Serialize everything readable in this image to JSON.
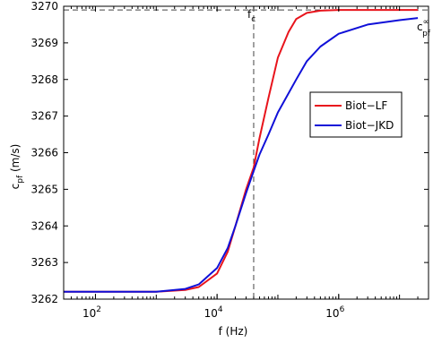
{
  "chart_data": {
    "type": "line",
    "xscale": "log",
    "xlim": [
      30,
      30000000
    ],
    "ylim": [
      3262,
      3270
    ],
    "xlabel": "f (Hz)",
    "ylabel_main": "c",
    "ylabel_sub": "pf",
    "ylabel_unit": " (m/s)",
    "x_ticks": [
      {
        "value": 100,
        "base": "10",
        "exp": "2"
      },
      {
        "value": 10000,
        "base": "10",
        "exp": "4"
      },
      {
        "value": 1000000,
        "base": "10",
        "exp": "6"
      }
    ],
    "y_ticks": [
      3262,
      3263,
      3264,
      3265,
      3266,
      3267,
      3268,
      3269,
      3270
    ],
    "annotations": {
      "fc_main": "f",
      "fc_sub": "c",
      "fc_value": 40000,
      "cinf_main": "c",
      "cinf_sup": "∞",
      "cinf_sub": "pf",
      "cinf_value": 3269.9
    },
    "legend": {
      "placement": "right-center"
    },
    "series": [
      {
        "name": "Biot−LF",
        "color": "#e8141c",
        "points": [
          [
            30,
            3262.2
          ],
          [
            1000,
            3262.2
          ],
          [
            3000,
            3262.25
          ],
          [
            5000,
            3262.33
          ],
          [
            10000,
            3262.7
          ],
          [
            15000,
            3263.3
          ],
          [
            20000,
            3264.0
          ],
          [
            30000,
            3265.0
          ],
          [
            40000,
            3265.6
          ],
          [
            50000,
            3266.4
          ],
          [
            70000,
            3267.5
          ],
          [
            100000,
            3268.6
          ],
          [
            150000,
            3269.3
          ],
          [
            200000,
            3269.65
          ],
          [
            300000,
            3269.82
          ],
          [
            500000,
            3269.88
          ],
          [
            1000000,
            3269.9
          ],
          [
            20000000,
            3269.9
          ]
        ]
      },
      {
        "name": "Biot−JKD",
        "color": "#1010d8",
        "points": [
          [
            30,
            3262.2
          ],
          [
            1000,
            3262.2
          ],
          [
            3000,
            3262.28
          ],
          [
            5000,
            3262.4
          ],
          [
            10000,
            3262.85
          ],
          [
            15000,
            3263.4
          ],
          [
            20000,
            3264.0
          ],
          [
            30000,
            3264.9
          ],
          [
            40000,
            3265.5
          ],
          [
            50000,
            3265.95
          ],
          [
            70000,
            3266.5
          ],
          [
            100000,
            3267.1
          ],
          [
            200000,
            3268.0
          ],
          [
            300000,
            3268.5
          ],
          [
            500000,
            3268.9
          ],
          [
            1000000,
            3269.25
          ],
          [
            3000000,
            3269.5
          ],
          [
            10000000,
            3269.62
          ],
          [
            20000000,
            3269.68
          ]
        ]
      }
    ]
  }
}
